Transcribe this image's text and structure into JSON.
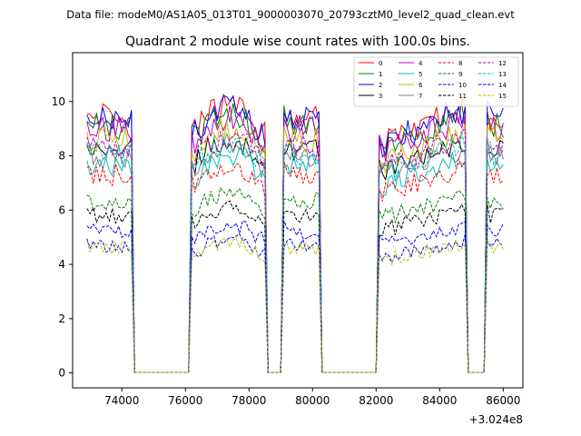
{
  "suptitle": "Data file: modeM0/AS1A05_013T01_9000003070_20793cztM0_level2_quad_clean.evt",
  "chart_data": {
    "type": "line",
    "title": "Quadrant 2 module wise count rates with 100.0s bins.",
    "xlabel": "",
    "ylabel": "",
    "x_offset_label": "+3.024e8",
    "x_offset": 302400000,
    "xlim": [
      72450,
      86620
    ],
    "ylim": [
      -0.55,
      11.8
    ],
    "xticks": [
      74000,
      76000,
      78000,
      80000,
      82000,
      84000,
      86000
    ],
    "xtick_labels": [
      "74000",
      "76000",
      "78000",
      "80000",
      "82000",
      "84000",
      "86000"
    ],
    "yticks": [
      0,
      2,
      4,
      6,
      8,
      10
    ],
    "ytick_labels": [
      "0",
      "2",
      "4",
      "6",
      "8",
      "10"
    ],
    "grid": false,
    "legend_position": "top-right",
    "legend_columns": 4,
    "segments": [
      {
        "start": 72900,
        "end": 74300,
        "peak_shape": "flat"
      },
      {
        "start": 76200,
        "end": 78500,
        "peak_shape": "dome"
      },
      {
        "start": 79100,
        "end": 80200,
        "peak_shape": "flat"
      },
      {
        "start": 82100,
        "end": 84800,
        "peak_shape": "rise"
      },
      {
        "start": 85500,
        "end": 86000,
        "peak_shape": "flat"
      }
    ],
    "zero_level": 0.02,
    "series": [
      {
        "name": "0",
        "color": "#ff0000",
        "dash": "solid",
        "level": 9.4
      },
      {
        "name": "1",
        "color": "#008000",
        "dash": "solid",
        "level": 9.1
      },
      {
        "name": "2",
        "color": "#0000ff",
        "dash": "solid",
        "level": 9.3
      },
      {
        "name": "3",
        "color": "#000000",
        "dash": "solid",
        "level": 8.2
      },
      {
        "name": "4",
        "color": "#bf00bf",
        "dash": "solid",
        "level": 9.0
      },
      {
        "name": "5",
        "color": "#00bfbf",
        "dash": "solid",
        "level": 7.6
      },
      {
        "name": "6",
        "color": "#bfbf00",
        "dash": "solid",
        "level": 8.6
      },
      {
        "name": "7",
        "color": "#808080",
        "dash": "solid",
        "level": 8.0
      },
      {
        "name": "8",
        "color": "#ff0000",
        "dash": "dashed",
        "level": 7.3
      },
      {
        "name": "9",
        "color": "#008000",
        "dash": "dashed",
        "level": 6.3
      },
      {
        "name": "10",
        "color": "#0000ff",
        "dash": "dashed",
        "level": 5.2
      },
      {
        "name": "11",
        "color": "#000000",
        "dash": "dashed",
        "level": 5.8
      },
      {
        "name": "12",
        "color": "#bf00bf",
        "dash": "dashed",
        "level": 8.3
      },
      {
        "name": "13",
        "color": "#00bfbf",
        "dash": "dashed",
        "level": 8.1
      },
      {
        "name": "14",
        "color": "#0000ff",
        "dash": "dashed",
        "level": 4.7
      },
      {
        "name": "15",
        "color": "#bfbf00",
        "dash": "dashed",
        "level": 4.6
      }
    ]
  }
}
